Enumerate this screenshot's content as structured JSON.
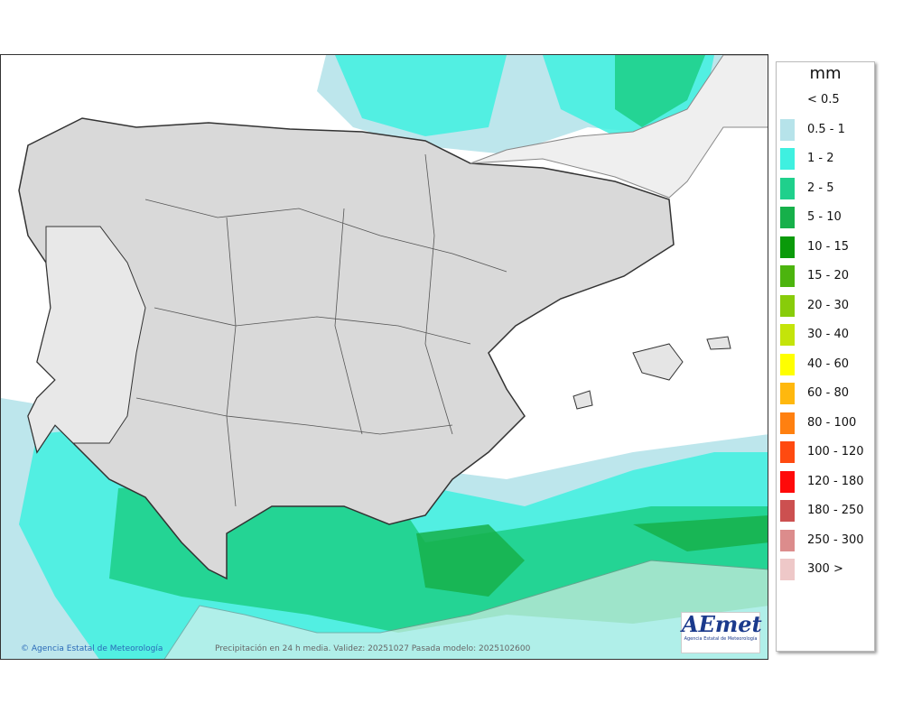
{
  "map": {
    "credit": "Agencia Estatal de Meteorología",
    "caption": "Precipitación en 24 h media. Validez: 20251027 Pasada modelo: 2025102600",
    "logo_text": "AEmet",
    "logo_subtitle": "Agencia Estatal de Meteorología",
    "credit_icon": "copyright-icon"
  },
  "legend": {
    "unit": "mm",
    "items": [
      {
        "label": "< 0.5",
        "color": "#ffffff"
      },
      {
        "label": "0.5 - 1",
        "color": "#b6e3ea"
      },
      {
        "label": "1 - 2",
        "color": "#3ff0e0"
      },
      {
        "label": "2 - 5",
        "color": "#1fd08c"
      },
      {
        "label": "5 - 10",
        "color": "#16b04a"
      },
      {
        "label": "10 - 15",
        "color": "#0a9a0a"
      },
      {
        "label": "15 - 20",
        "color": "#4cb40e"
      },
      {
        "label": "20 - 30",
        "color": "#88cc0a"
      },
      {
        "label": "30 - 40",
        "color": "#c4e40a"
      },
      {
        "label": "40 - 60",
        "color": "#ffff00"
      },
      {
        "label": "60 - 80",
        "color": "#ffb80e"
      },
      {
        "label": "80 - 100",
        "color": "#ff8010"
      },
      {
        "label": "100 - 120",
        "color": "#ff4a10"
      },
      {
        "label": "120 - 180",
        "color": "#ff0a0a"
      },
      {
        "label": "180 - 250",
        "color": "#cc5050"
      },
      {
        "label": "250 - 300",
        "color": "#dc8c8c"
      },
      {
        "label": "300 >",
        "color": "#eec8c8"
      }
    ]
  }
}
